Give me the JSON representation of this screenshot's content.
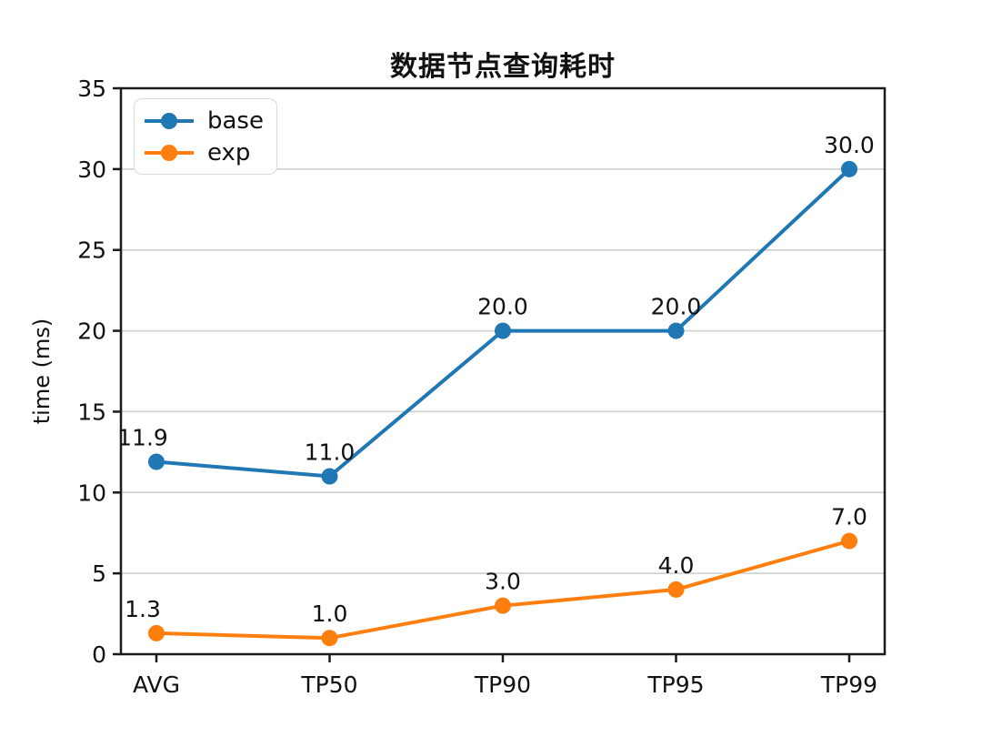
{
  "title": "数据节点查询耗时",
  "chart_data": {
    "type": "line",
    "title": "数据节点查询耗时",
    "xlabel": "",
    "ylabel": "time (ms)",
    "categories": [
      "AVG",
      "TP50",
      "TP90",
      "TP95",
      "TP99"
    ],
    "series": [
      {
        "name": "base",
        "color": "#1f77b4",
        "values": [
          11.9,
          11.0,
          20.0,
          20.0,
          30.0
        ],
        "labels": [
          "11.9",
          "11.0",
          "20.0",
          "20.0",
          "30.0"
        ]
      },
      {
        "name": "exp",
        "color": "#ff7f0e",
        "values": [
          1.3,
          1.0,
          3.0,
          4.0,
          7.0
        ],
        "labels": [
          "1.3",
          "1.0",
          "3.0",
          "4.0",
          "7.0"
        ]
      }
    ],
    "ylim": [
      0,
      35
    ],
    "yticks": [
      0,
      5,
      10,
      15,
      20,
      25,
      30,
      35
    ],
    "grid": "horizontal",
    "legend_position": "upper-left"
  },
  "colors": {
    "grid": "#cccccc",
    "axis": "#1a1a1a",
    "background": "#ffffff",
    "series_base": "#1f77b4",
    "series_exp": "#ff7f0e"
  }
}
